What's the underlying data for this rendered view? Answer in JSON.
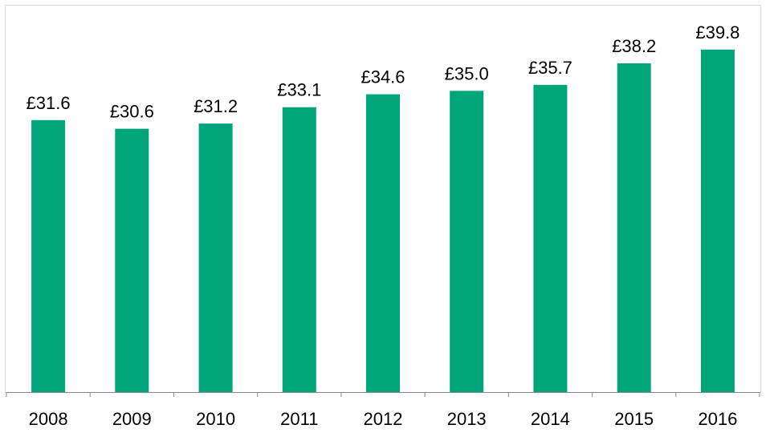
{
  "chart_data": {
    "type": "bar",
    "categories": [
      "2008",
      "2009",
      "2010",
      "2011",
      "2012",
      "2013",
      "2014",
      "2015",
      "2016"
    ],
    "values": [
      31.6,
      30.6,
      31.2,
      33.1,
      34.6,
      35.0,
      35.7,
      38.2,
      39.8
    ],
    "data_labels": [
      "£31.6",
      "£30.6",
      "£31.2",
      "£33.1",
      "£34.6",
      "£35.0",
      "£35.7",
      "£38.2",
      "£39.8"
    ],
    "title": "",
    "xlabel": "",
    "ylabel": "",
    "ylim": [
      0,
      45
    ],
    "grid": false,
    "legend": "none",
    "bar_color": "#00a67a",
    "axis_color": "#868686",
    "frame_color": "#d9d9d9"
  }
}
